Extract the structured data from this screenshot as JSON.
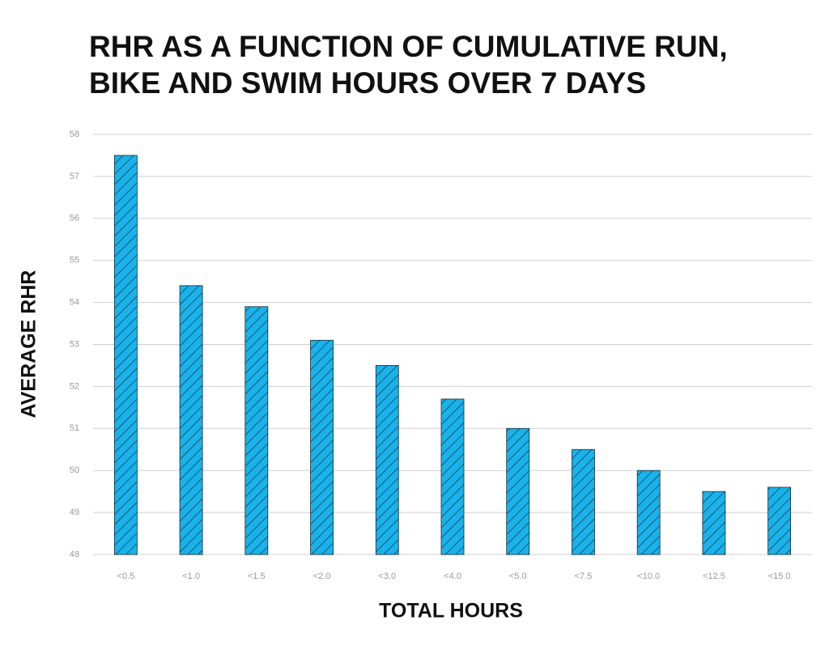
{
  "chart_data": {
    "type": "bar",
    "title": [
      "RHR AS A FUNCTION OF CUMULATIVE RUN,",
      "BIKE AND SWIM HOURS OVER 7 DAYS"
    ],
    "x_label": "TOTAL HOURS",
    "y_label": "AVERAGE RHR",
    "categories": [
      "<0.5",
      "<1.0",
      "<1.5",
      "<2.0",
      "<3.0",
      "<4.0",
      "<5.0",
      "<7.5",
      "<10.0",
      "<12.5",
      "<15.0"
    ],
    "values": [
      57.5,
      54.4,
      53.9,
      53.1,
      52.5,
      51.7,
      51.0,
      50.5,
      50.0,
      49.5,
      49.6
    ],
    "color": "#19b2ea",
    "hatch_color": "#1a2a33",
    "ylim": [
      48,
      58
    ],
    "yticks": [
      48,
      49,
      50,
      51,
      52,
      53,
      54,
      55,
      56,
      57,
      58
    ],
    "grid": true
  }
}
